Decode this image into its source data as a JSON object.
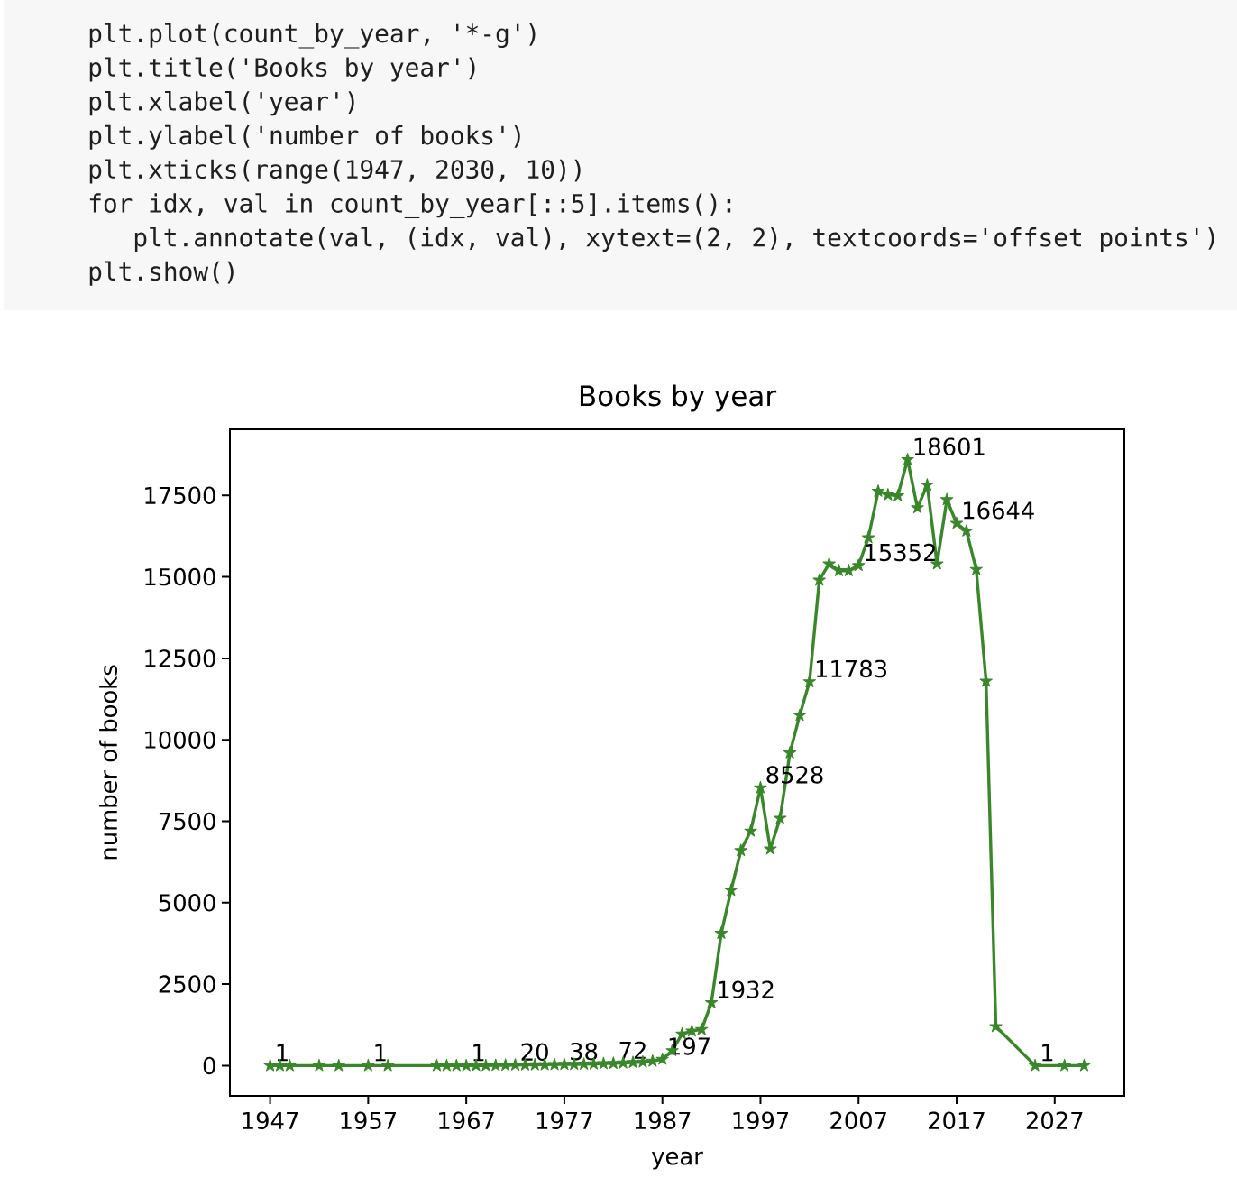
{
  "chart_data": {
    "type": "line",
    "title": "Books by year",
    "xlabel": "year",
    "ylabel": "number of books",
    "x": [
      1947,
      1948,
      1949,
      1952,
      1954,
      1957,
      1959,
      1964,
      1965,
      1966,
      1967,
      1968,
      1969,
      1970,
      1971,
      1972,
      1973,
      1974,
      1975,
      1976,
      1977,
      1978,
      1979,
      1980,
      1981,
      1982,
      1983,
      1984,
      1985,
      1986,
      1987,
      1988,
      1989,
      1990,
      1991,
      1992,
      1993,
      1994,
      1995,
      1996,
      1997,
      1998,
      1999,
      2000,
      2001,
      2002,
      2003,
      2004,
      2005,
      2006,
      2007,
      2008,
      2009,
      2010,
      2011,
      2012,
      2013,
      2014,
      2015,
      2016,
      2017,
      2018,
      2019,
      2020,
      2021,
      2025,
      2028,
      2030
    ],
    "values": [
      1,
      1,
      1,
      1,
      1,
      1,
      1,
      1,
      1,
      1,
      1,
      3,
      5,
      8,
      12,
      20,
      22,
      25,
      28,
      33,
      38,
      40,
      45,
      52,
      60,
      72,
      80,
      95,
      110,
      140,
      197,
      460,
      970,
      1060,
      1110,
      1932,
      4060,
      5380,
      6600,
      7200,
      8528,
      6650,
      7590,
      9600,
      10750,
      11783,
      14900,
      15400,
      15190,
      15190,
      15352,
      16200,
      17630,
      17520,
      17490,
      18601,
      17120,
      17820,
      15400,
      17370,
      16644,
      16410,
      15230,
      11800,
      1200,
      1,
      1,
      1
    ],
    "value_labels": [
      "1",
      null,
      null,
      null,
      null,
      "1",
      null,
      null,
      null,
      null,
      "1",
      null,
      null,
      null,
      null,
      "20",
      null,
      null,
      null,
      null,
      "38",
      null,
      null,
      null,
      null,
      "72",
      null,
      null,
      null,
      null,
      "197",
      null,
      null,
      null,
      null,
      "1932",
      null,
      null,
      null,
      null,
      "8528",
      null,
      null,
      null,
      null,
      "11783",
      null,
      null,
      null,
      null,
      "15352",
      null,
      null,
      null,
      null,
      "18601",
      null,
      null,
      null,
      null,
      "16644",
      null,
      null,
      null,
      null,
      "1",
      null,
      null
    ],
    "color": "#3a872b",
    "marker": "star",
    "line_style": "solid",
    "xlim": [
      1942.9,
      2034.1
    ],
    "ylim": [
      -930,
      19530
    ],
    "xticks": [
      1947,
      1957,
      1967,
      1977,
      1987,
      1997,
      2007,
      2017,
      2027
    ],
    "yticks": [
      0,
      2500,
      5000,
      7500,
      10000,
      12500,
      15000,
      17500
    ],
    "annotations": [
      "plt.plot(count_by_year, '*-g')",
      "plt.title('Books by year')",
      "plt.xlabel('year')",
      "plt.ylabel('number of books')",
      "plt.xticks(range(1947, 2030, 10))",
      "for idx, val in count_by_year[::5].items():",
      "  plt.annotate(val, (idx, val), xytext=(2, 2), textcoords='offset points')",
      "plt.show()"
    ]
  }
}
